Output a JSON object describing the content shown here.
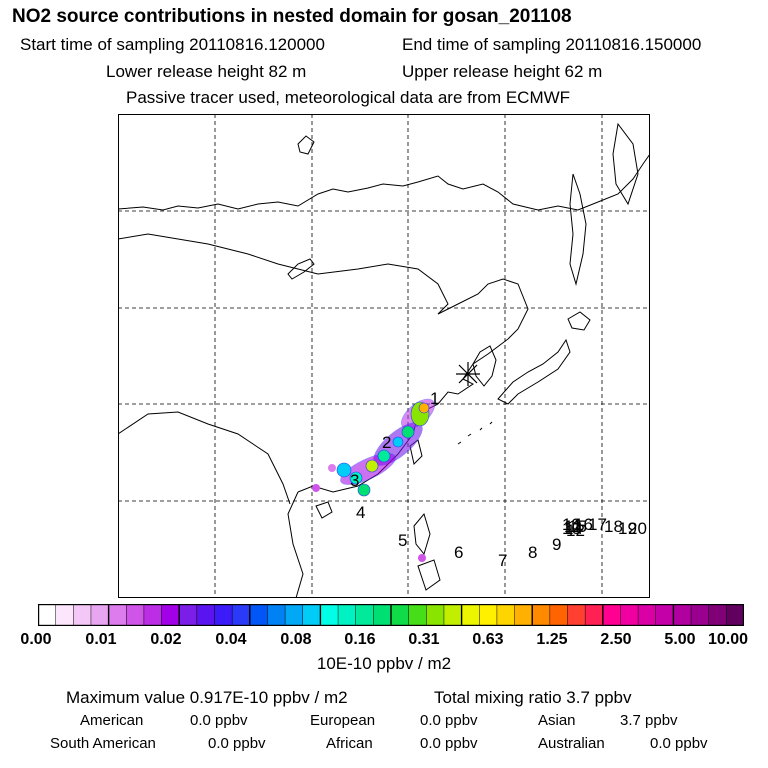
{
  "header": {
    "title": "NO2 source contributions in nested domain for gosan_201108",
    "start_label": "Start time of sampling 20110816.120000",
    "end_label": "End time of sampling 20110816.150000",
    "lower_label": "Lower release height   82 m",
    "upper_label": "Upper release height   62 m",
    "note": "Passive tracer used, meteorological data are from ECMWF"
  },
  "map": {
    "receptor_marker": "asterisk",
    "trajectory_labels": [
      "1",
      "2",
      "3",
      "4",
      "5",
      "6",
      "7",
      "8",
      "9",
      "10",
      "11",
      "12",
      "13",
      "14",
      "15",
      "16",
      "17",
      "18",
      "19",
      "20"
    ],
    "colors": {
      "land_line": "#000000",
      "grid": "#000000"
    }
  },
  "colorbar": {
    "ticks": [
      "0.00",
      "0.01",
      "0.02",
      "0.04",
      "0.08",
      "0.16",
      "0.31",
      "0.63",
      "1.25",
      "2.50",
      "5.00",
      "10.00"
    ],
    "unit": "10E-10 ppbv / m2",
    "colors": [
      "#ffffff",
      "#fbe6fb",
      "#f3c8f6",
      "#e9a6f0",
      "#dd7cec",
      "#cf55e8",
      "#bb2ee6",
      "#a200e6",
      "#7a1ee8",
      "#5a14f0",
      "#3b1cf8",
      "#2a3af8",
      "#0056f6",
      "#0081f4",
      "#00a8f6",
      "#00ccf8",
      "#00ffe6",
      "#00f2c2",
      "#00ea9a",
      "#00e072",
      "#10dc48",
      "#46de18",
      "#88e400",
      "#c2ee00",
      "#ecf600",
      "#fff000",
      "#ffd500",
      "#ffb000",
      "#ff8a00",
      "#ff6400",
      "#ff4030",
      "#ff2054",
      "#ff0090",
      "#f000a0",
      "#da00a6",
      "#c400a8",
      "#b000a0",
      "#9a0090",
      "#800078",
      "#620060"
    ]
  },
  "stats": {
    "max_label": "Maximum value  0.917E-10 ppbv / m2",
    "total_label": "Total mixing ratio       3.7 ppbv",
    "american_label": "American",
    "american_value": "0.0 ppbv",
    "european_label": "European",
    "european_value": "0.0 ppbv",
    "asian_label": "Asian",
    "asian_value": "3.7 ppbv",
    "south_american_label": "South American",
    "south_american_value": "0.0 ppbv",
    "african_label": "African",
    "african_value": "0.0 ppbv",
    "australian_label": "Australian",
    "australian_value": "0.0 ppbv"
  }
}
